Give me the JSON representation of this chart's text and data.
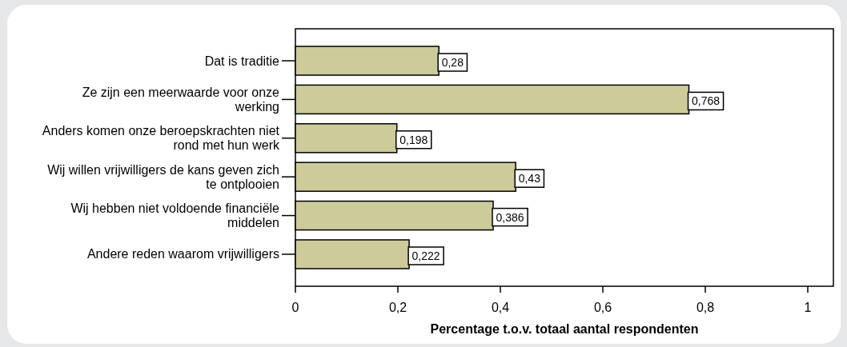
{
  "chart_data": {
    "type": "bar",
    "orientation": "horizontal",
    "xlabel": "Percentage t.o.v. totaal aantal respondenten",
    "categories": [
      "Dat is traditie",
      "Ze zijn een meerwaarde voor onze werking",
      "Anders komen onze beroepskrachten niet rond met hun werk",
      "Wij willen vrijwilligers de kans geven zich te ontplooien",
      "Wij hebben niet voldoende financiële middelen",
      "Andere reden waarom vrijwilligers"
    ],
    "values": [
      0.28,
      0.768,
      0.198,
      0.43,
      0.386,
      0.222
    ],
    "value_labels": [
      "0,28",
      "0,768",
      "0,198",
      "0,43",
      "0,386",
      "0,222"
    ],
    "color": "#cdcb9a",
    "xlim": [
      0,
      1.05
    ],
    "xticks": [
      0,
      {
        "value": 0.2,
        "label": "0,2"
      },
      {
        "value": 0.4,
        "label": "0,4"
      },
      {
        "value": 0.6,
        "label": "0,6"
      },
      {
        "value": 0.8,
        "label": "0,8"
      },
      1
    ]
  }
}
